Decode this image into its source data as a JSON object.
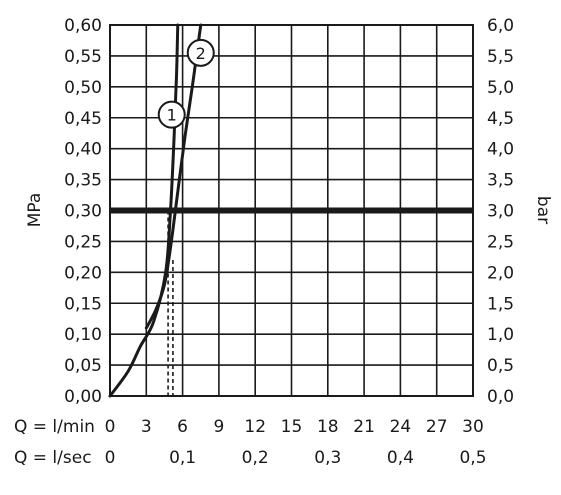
{
  "chart_data": {
    "type": "line",
    "title": "",
    "y_left": {
      "label": "MPa",
      "range": [
        0,
        0.6
      ],
      "ticks": [
        "0,00",
        "0,05",
        "0,10",
        "0,15",
        "0,20",
        "0,25",
        "0,30",
        "0,35",
        "0,40",
        "0,45",
        "0,50",
        "0,55",
        "0,60"
      ]
    },
    "y_right": {
      "label": "bar",
      "range": [
        0,
        6
      ],
      "ticks": [
        "0,0",
        "0,5",
        "1,0",
        "1,5",
        "2,0",
        "2,5",
        "3,0",
        "3,5",
        "4,0",
        "4,5",
        "5,0",
        "5,5",
        "6,0"
      ]
    },
    "x_primary": {
      "label": "Q = l/min",
      "range": [
        0,
        30
      ],
      "ticks": [
        {
          "value": 0,
          "text": "0"
        },
        {
          "value": 3,
          "text": "3"
        },
        {
          "value": 6,
          "text": "6"
        },
        {
          "value": 9,
          "text": "9"
        },
        {
          "value": 12,
          "text": "12"
        },
        {
          "value": 15,
          "text": "15"
        },
        {
          "value": 18,
          "text": "18"
        },
        {
          "value": 21,
          "text": "21"
        },
        {
          "value": 24,
          "text": "24"
        },
        {
          "value": 27,
          "text": "27"
        },
        {
          "value": 30,
          "text": "30"
        }
      ]
    },
    "x_secondary": {
      "label": "Q = l/sec",
      "ticks": [
        {
          "value": 0,
          "text": "0"
        },
        {
          "value": 6,
          "text": "0,1"
        },
        {
          "value": 12,
          "text": "0,2"
        },
        {
          "value": 18,
          "text": "0,3"
        },
        {
          "value": 24,
          "text": "0,4"
        },
        {
          "value": 30,
          "text": "0,5"
        }
      ]
    },
    "grid": true,
    "series": [
      {
        "name": "1",
        "points": [
          [
            0,
            0
          ],
          [
            1.5,
            0.04
          ],
          [
            2.5,
            0.08
          ],
          [
            3.6,
            0.12
          ],
          [
            4.6,
            0.2
          ],
          [
            5.0,
            0.3
          ],
          [
            5.3,
            0.42
          ],
          [
            5.5,
            0.52
          ],
          [
            5.6,
            0.6
          ]
        ]
      },
      {
        "name": "2",
        "points": [
          [
            3.0,
            0.11
          ],
          [
            3.8,
            0.14
          ],
          [
            4.5,
            0.18
          ],
          [
            5.0,
            0.24
          ],
          [
            5.6,
            0.33
          ],
          [
            6.2,
            0.42
          ],
          [
            6.8,
            0.5
          ],
          [
            7.5,
            0.6
          ]
        ]
      }
    ],
    "reference_line": {
      "y": 0.3
    },
    "dashed_lines": [
      {
        "x": 4.8,
        "y_top": 0.3
      },
      {
        "x": 5.2,
        "y_top": 0.22
      }
    ],
    "annotations": [
      {
        "text": "1",
        "x": 5.1,
        "y": 0.455
      },
      {
        "text": "2",
        "x": 7.5,
        "y": 0.555
      }
    ]
  }
}
